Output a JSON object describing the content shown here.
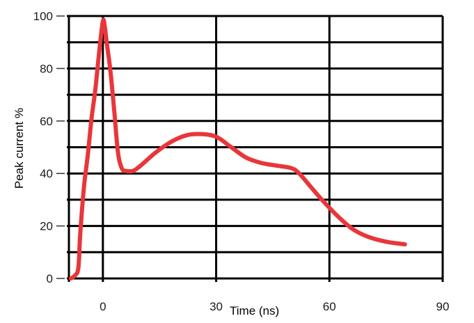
{
  "chart_data": {
    "type": "line",
    "title": "",
    "xlabel": "Time (ns)",
    "ylabel": "Peak current %",
    "xlim": [
      -9,
      90
    ],
    "ylim": [
      0,
      100
    ],
    "x_ticks": [
      0,
      30,
      60,
      90
    ],
    "y_ticks": [
      0,
      20,
      40,
      60,
      80,
      100
    ],
    "x_tick_labels": [
      "0",
      "30",
      "60",
      "90"
    ],
    "y_tick_labels": [
      "0",
      "20",
      "40",
      "60",
      "80",
      "100"
    ],
    "x_grid": [
      -9,
      0,
      30,
      60,
      90
    ],
    "y_grid": [
      0,
      10,
      20,
      30,
      40,
      50,
      60,
      70,
      80,
      90,
      100
    ],
    "grid": true,
    "series": [
      {
        "color": "#e8363a",
        "x": [
          -8.5,
          -7.5,
          -6.5,
          -6,
          -5,
          -4,
          -3,
          -2,
          -1,
          0,
          0.5,
          1,
          2,
          3,
          4,
          5,
          6,
          8,
          10,
          14,
          18,
          22,
          26,
          30,
          34,
          38,
          42,
          46,
          50,
          52,
          55,
          58,
          62,
          66,
          70,
          75,
          80
        ],
        "y": [
          0,
          1,
          4,
          17,
          35,
          47,
          61,
          72,
          86,
          98,
          96,
          90,
          79,
          64,
          48,
          42,
          41,
          41,
          43,
          48,
          52,
          54.5,
          55,
          54,
          50,
          46,
          44,
          43,
          42,
          40,
          35,
          30,
          24,
          19,
          16,
          14,
          13
        ]
      }
    ]
  }
}
